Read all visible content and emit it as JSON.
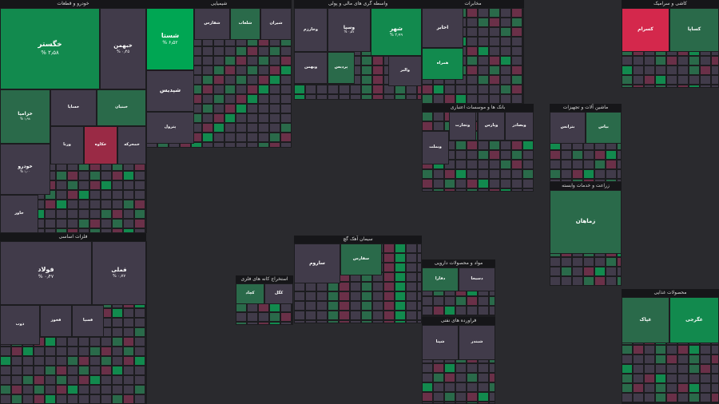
{
  "palette": {
    "s3": "#00a653",
    "s2": "#128a4e",
    "s1": "#2a6a4a",
    "n": "#413b4a",
    "d1": "#6a3048",
    "d2": "#9a2a45",
    "d3": "#d4284c",
    "gap": "#1c1c1f",
    "bg": "#2a2a2e"
  },
  "chart_data": {
    "type": "treemap",
    "sectors": [
      {
        "id": "auto",
        "name": "خودرو و قطعات",
        "tiles": [
          {
            "sym": "خگستر",
            "pct": "۲٫۵۸ %",
            "c": "s2"
          },
          {
            "sym": "خبهمن",
            "pct": "۰٫۴۵ %",
            "c": "n"
          },
          {
            "sym": "خزامیا",
            "pct": "۱٫۹۸ %",
            "c": "s1"
          },
          {
            "sym": "خساپا",
            "pct": "",
            "c": "n"
          },
          {
            "sym": "خبنیان",
            "pct": "",
            "c": "s1"
          },
          {
            "sym": "ورنا",
            "pct": "",
            "c": "n"
          },
          {
            "sym": "خکاوه",
            "pct": "",
            "c": "d2"
          },
          {
            "sym": "خمحرکه",
            "pct": "",
            "c": "n"
          },
          {
            "sym": "خودرو",
            "pct": "۱٫۰۰ %",
            "c": "n"
          },
          {
            "sym": "خاور",
            "pct": "",
            "c": "n"
          }
        ]
      },
      {
        "id": "chem",
        "name": "شیمیایی",
        "tiles": [
          {
            "sym": "شستا",
            "pct": "۶٫۵۲ %",
            "c": "s3"
          },
          {
            "sym": "شفارس",
            "pct": "",
            "c": "n"
          },
          {
            "sym": "شلعاب",
            "pct": "",
            "c": "s1"
          },
          {
            "sym": "شیران",
            "pct": "",
            "c": "n"
          },
          {
            "sym": "شپدیس",
            "pct": "",
            "c": "n"
          },
          {
            "sym": "پترول",
            "pct": "",
            "c": "n"
          }
        ]
      },
      {
        "id": "bank",
        "name": "بانک ها و موسسات اعتباری",
        "tiles": [
          {
            "sym": "وبملت",
            "pct": "",
            "c": "n"
          },
          {
            "sym": "وتجارت",
            "pct": "",
            "c": "n"
          },
          {
            "sym": "وپارس",
            "pct": "",
            "c": "n"
          },
          {
            "sym": "وبصادر",
            "pct": "",
            "c": "n"
          }
        ]
      },
      {
        "id": "fin",
        "name": "واسطه گری های مالی و پولی",
        "tiles": [
          {
            "sym": "وسپا",
            "pct": "۰٫۵۷ %",
            "c": "n"
          },
          {
            "sym": "شهر",
            "pct": "۲٫۹۹ %",
            "c": "s2"
          },
          {
            "sym": "وخارزم",
            "pct": "",
            "c": "n"
          },
          {
            "sym": "وبهمن",
            "pct": "",
            "c": "n"
          },
          {
            "sym": "پردیس",
            "pct": "",
            "c": "s1"
          },
          {
            "sym": "والبر",
            "pct": "",
            "c": "n"
          }
        ]
      },
      {
        "id": "tel",
        "name": "مخابرات",
        "tiles": [
          {
            "sym": "اخابر",
            "pct": "",
            "c": "n"
          },
          {
            "sym": "همراه",
            "pct": "",
            "c": "s2"
          }
        ]
      },
      {
        "id": "pharma",
        "name": "مواد و محصولات دارویی",
        "tiles": [
          {
            "sym": "دفارا",
            "pct": "",
            "c": "s1"
          },
          {
            "sym": "دسبحا",
            "pct": "",
            "c": "n"
          }
        ]
      },
      {
        "id": "mine",
        "name": "استخراج کانه های فلزی",
        "tiles": [
          {
            "sym": "کگل",
            "pct": "",
            "c": "n"
          },
          {
            "sym": "کچاد",
            "pct": "",
            "c": "s1"
          }
        ]
      },
      {
        "id": "metal",
        "name": "فلزات اساسی",
        "tiles": [
          {
            "sym": "فولاد",
            "pct": "۰٫۴۷ %",
            "c": "n"
          },
          {
            "sym": "فملی",
            "pct": "۰٫۷۷ %",
            "c": "n"
          },
          {
            "sym": "ذوب",
            "pct": "",
            "c": "n"
          },
          {
            "sym": "فخوز",
            "pct": "",
            "c": "n"
          },
          {
            "sym": "فسپا",
            "pct": "",
            "c": "n"
          }
        ]
      },
      {
        "id": "cement",
        "name": "سیمان آهک گچ",
        "tiles": [
          {
            "sym": "ساروم",
            "pct": "",
            "c": "n"
          },
          {
            "sym": "سفارس",
            "pct": "",
            "c": "s1"
          }
        ]
      },
      {
        "id": "refine",
        "name": "فراورده های نفتی",
        "tiles": [
          {
            "sym": "شپنا",
            "pct": "",
            "c": "n"
          },
          {
            "sym": "شبندر",
            "pct": "",
            "c": "n"
          }
        ]
      },
      {
        "id": "food",
        "name": "محصولات غذایی",
        "tiles": [
          {
            "sym": "غپاک",
            "pct": "",
            "c": "s1"
          },
          {
            "sym": "غگرجی",
            "pct": "",
            "c": "s2"
          }
        ]
      },
      {
        "id": "farm",
        "name": "زراعت و خدمات وابسته",
        "tiles": [
          {
            "sym": "زماهان",
            "pct": "",
            "c": "s1"
          }
        ]
      },
      {
        "id": "elec",
        "name": "ماشین آلات و تجهیزات",
        "tiles": [
          {
            "sym": "بترانس",
            "pct": "",
            "c": "n"
          },
          {
            "sym": "بپاس",
            "pct": "",
            "c": "s1"
          }
        ]
      },
      {
        "id": "glass",
        "name": "کاشی و سرامیک",
        "tiles": [
          {
            "sym": "کسرام",
            "pct": "",
            "c": "d3"
          },
          {
            "sym": "کساپا",
            "pct": "",
            "c": "s1"
          }
        ]
      }
    ]
  }
}
